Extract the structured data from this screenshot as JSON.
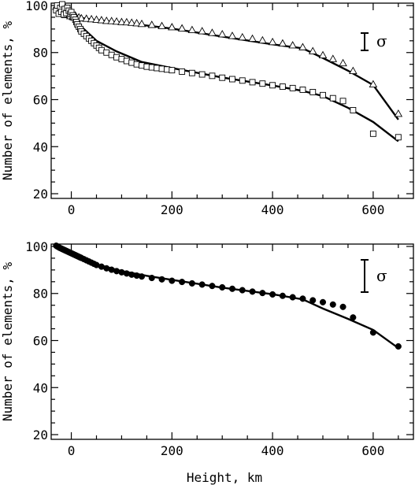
{
  "chart_data": [
    {
      "type": "scatter",
      "xlabel": "",
      "ylabel": "Number of elements, %",
      "xlim": [
        -40,
        680
      ],
      "ylim": [
        18,
        101
      ],
      "xticks": [
        "0",
        "200",
        "400",
        "600"
      ],
      "yticks": [
        "20",
        "40",
        "60",
        "80",
        "100"
      ],
      "annotation": "σ",
      "error_bar_height": 7.5,
      "series": [
        {
          "marker": "triangle",
          "points": [
            [
              -30,
              99.5
            ],
            [
              -25,
              98.5
            ],
            [
              -22,
              97.5
            ],
            [
              -20,
              100
            ],
            [
              -18,
              98.8
            ],
            [
              -15,
              97
            ],
            [
              -13,
              99.5
            ],
            [
              -12,
              96
            ],
            [
              -10,
              98
            ],
            [
              -8,
              97
            ],
            [
              -5,
              96
            ],
            [
              -2,
              95.5
            ],
            [
              0,
              96.5
            ],
            [
              3,
              95.2
            ],
            [
              5,
              95
            ],
            [
              8,
              95.8
            ],
            [
              10,
              94.8
            ],
            [
              15,
              95
            ],
            [
              20,
              94.6
            ],
            [
              30,
              94.4
            ],
            [
              40,
              94.2
            ],
            [
              50,
              94
            ],
            [
              60,
              93.8
            ],
            [
              70,
              93.5
            ],
            [
              80,
              93.4
            ],
            [
              90,
              93.2
            ],
            [
              100,
              93
            ],
            [
              110,
              92.9
            ],
            [
              120,
              92.7
            ],
            [
              130,
              92.5
            ],
            [
              140,
              92.2
            ],
            [
              160,
              91.8
            ],
            [
              180,
              91.3
            ],
            [
              200,
              90.8
            ],
            [
              220,
              90.3
            ],
            [
              240,
              89.6
            ],
            [
              260,
              89.1
            ],
            [
              280,
              88.4
            ],
            [
              300,
              87.8
            ],
            [
              320,
              87.1
            ],
            [
              340,
              86.5
            ],
            [
              360,
              85.9
            ],
            [
              380,
              85.2
            ],
            [
              400,
              84.5
            ],
            [
              420,
              83.9
            ],
            [
              440,
              83.1
            ],
            [
              460,
              82.3
            ],
            [
              480,
              80.6
            ],
            [
              500,
              78.9
            ],
            [
              520,
              77.3
            ],
            [
              540,
              75.5
            ],
            [
              560,
              72.2
            ],
            [
              600,
              66.5
            ],
            [
              650,
              54
            ]
          ],
          "line": [
            [
              -30,
              98
            ],
            [
              0,
              95.3
            ],
            [
              50,
              93.8
            ],
            [
              100,
              92.7
            ],
            [
              150,
              91.5
            ],
            [
              200,
              90.2
            ],
            [
              300,
              86.8
            ],
            [
              400,
              83.5
            ],
            [
              460,
              81.8
            ],
            [
              500,
              77.7
            ],
            [
              550,
              72.3
            ],
            [
              600,
              66.2
            ],
            [
              650,
              51.5
            ]
          ]
        },
        {
          "marker": "square",
          "points": [
            [
              -30,
              98
            ],
            [
              -28,
              100
            ],
            [
              -25,
              96.5
            ],
            [
              -22,
              99
            ],
            [
              -20,
              97.3
            ],
            [
              -18,
              100.5
            ],
            [
              -15,
              96.2
            ],
            [
              -13,
              98.5
            ],
            [
              -10,
              96.8
            ],
            [
              -8,
              99
            ],
            [
              -5,
              97.8
            ],
            [
              -2,
              96.5
            ],
            [
              0,
              97.2
            ],
            [
              3,
              95.8
            ],
            [
              5,
              95
            ],
            [
              8,
              94
            ],
            [
              10,
              93
            ],
            [
              12,
              92
            ],
            [
              15,
              91
            ],
            [
              18,
              90
            ],
            [
              20,
              89
            ],
            [
              25,
              88
            ],
            [
              30,
              87
            ],
            [
              35,
              86
            ],
            [
              40,
              85
            ],
            [
              45,
              84
            ],
            [
              50,
              83
            ],
            [
              55,
              82
            ],
            [
              60,
              81
            ],
            [
              70,
              80
            ],
            [
              80,
              79
            ],
            [
              90,
              78
            ],
            [
              100,
              77.2
            ],
            [
              110,
              76.4
            ],
            [
              120,
              75.7
            ],
            [
              130,
              75
            ],
            [
              140,
              74.5
            ],
            [
              150,
              74
            ],
            [
              160,
              73.7
            ],
            [
              170,
              73.4
            ],
            [
              180,
              73.1
            ],
            [
              190,
              72.8
            ],
            [
              200,
              72.5
            ],
            [
              220,
              71.9
            ],
            [
              240,
              71.3
            ],
            [
              260,
              70.7
            ],
            [
              280,
              70.1
            ],
            [
              300,
              69.3
            ],
            [
              320,
              68.7
            ],
            [
              340,
              68.1
            ],
            [
              360,
              67.4
            ],
            [
              380,
              66.8
            ],
            [
              400,
              66.1
            ],
            [
              420,
              65.5
            ],
            [
              440,
              64.9
            ],
            [
              460,
              64.2
            ],
            [
              480,
              63.2
            ],
            [
              500,
              61.9
            ],
            [
              520,
              60.6
            ],
            [
              540,
              59.4
            ],
            [
              560,
              55.5
            ],
            [
              600,
              45.5
            ],
            [
              650,
              44
            ]
          ],
          "line": [
            [
              -30,
              98
            ],
            [
              0,
              95.6
            ],
            [
              20,
              91
            ],
            [
              50,
              85
            ],
            [
              90,
              80.5
            ],
            [
              140,
              76
            ],
            [
              200,
              73.4
            ],
            [
              300,
              69.4
            ],
            [
              400,
              66
            ],
            [
              460,
              63.7
            ],
            [
              500,
              61.5
            ],
            [
              550,
              56.5
            ],
            [
              600,
              50.5
            ],
            [
              650,
              42.3
            ]
          ]
        }
      ]
    },
    {
      "type": "scatter",
      "xlabel": "Height, km",
      "ylabel": "Number of elements, %",
      "xlim": [
        -40,
        680
      ],
      "ylim": [
        18,
        101
      ],
      "xticks": [
        "0",
        "200",
        "400",
        "600"
      ],
      "yticks": [
        "20",
        "40",
        "60",
        "80",
        "100"
      ],
      "annotation": "σ",
      "error_bar_height": 7.5,
      "series": [
        {
          "marker": "filled-circle",
          "points": [
            [
              -30,
              100.3
            ],
            [
              -28,
              100
            ],
            [
              -26,
              99.8
            ],
            [
              -24,
              99.5
            ],
            [
              -22,
              99.3
            ],
            [
              -20,
              99.1
            ],
            [
              -18,
              98.9
            ],
            [
              -16,
              98.7
            ],
            [
              -14,
              98.5
            ],
            [
              -12,
              98.3
            ],
            [
              -10,
              98.1
            ],
            [
              -8,
              97.9
            ],
            [
              -6,
              97.7
            ],
            [
              -4,
              97.5
            ],
            [
              -2,
              97.3
            ],
            [
              0,
              97.1
            ],
            [
              2,
              96.9
            ],
            [
              4,
              96.7
            ],
            [
              6,
              96.5
            ],
            [
              8,
              96.3
            ],
            [
              10,
              96.1
            ],
            [
              12,
              95.9
            ],
            [
              14,
              95.7
            ],
            [
              16,
              95.5
            ],
            [
              18,
              95.3
            ],
            [
              20,
              95.1
            ],
            [
              25,
              94.6
            ],
            [
              30,
              94.1
            ],
            [
              35,
              93.6
            ],
            [
              40,
              93.1
            ],
            [
              45,
              92.6
            ],
            [
              50,
              92.1
            ],
            [
              60,
              91.4
            ],
            [
              70,
              90.7
            ],
            [
              80,
              90.1
            ],
            [
              90,
              89.5
            ],
            [
              100,
              89
            ],
            [
              110,
              88.5
            ],
            [
              120,
              88
            ],
            [
              130,
              87.6
            ],
            [
              140,
              87.2
            ],
            [
              160,
              86.6
            ],
            [
              180,
              86
            ],
            [
              200,
              85.4
            ],
            [
              220,
              84.9
            ],
            [
              240,
              84.3
            ],
            [
              260,
              83.8
            ],
            [
              280,
              83.2
            ],
            [
              300,
              82.6
            ],
            [
              320,
              82
            ],
            [
              340,
              81.4
            ],
            [
              360,
              80.8
            ],
            [
              380,
              80.2
            ],
            [
              400,
              79.6
            ],
            [
              420,
              79
            ],
            [
              440,
              78.4
            ],
            [
              460,
              77.8
            ],
            [
              480,
              77.1
            ],
            [
              500,
              76.3
            ],
            [
              520,
              75.3
            ],
            [
              540,
              74.3
            ],
            [
              560,
              69.8
            ],
            [
              600,
              63.4
            ],
            [
              650,
              57.5
            ]
          ],
          "line": [
            [
              -30,
              100.3
            ],
            [
              0,
              97.1
            ],
            [
              50,
              92.4
            ],
            [
              100,
              89.5
            ],
            [
              150,
              87.5
            ],
            [
              200,
              85.8
            ],
            [
              300,
              82.5
            ],
            [
              400,
              79.7
            ],
            [
              460,
              77.5
            ],
            [
              500,
              73.6
            ],
            [
              550,
              69.2
            ],
            [
              600,
              64.5
            ],
            [
              650,
              56.8
            ]
          ]
        }
      ]
    }
  ]
}
